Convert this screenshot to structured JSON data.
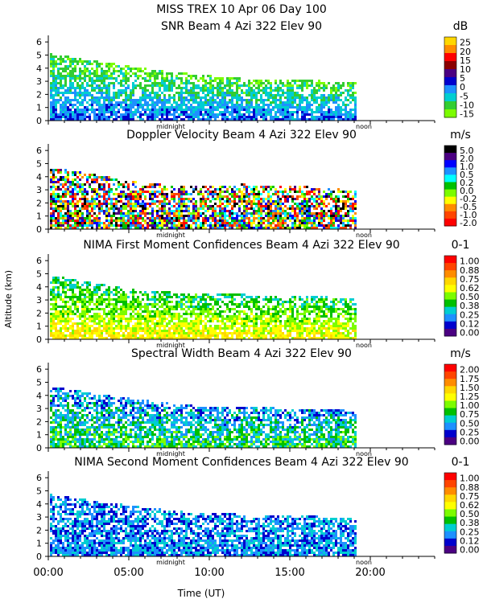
{
  "figure": {
    "title_line1": "MISS TREX   10 Apr 06 Day 100",
    "ylabel": "Altitude (km)",
    "xlabel": "Time (UT)",
    "x_ticks": [
      "00:00",
      "05:00",
      "10:00",
      "15:00",
      "20:00"
    ],
    "x_tick_values": [
      0,
      5,
      10,
      15,
      20
    ],
    "day_markers": [
      {
        "label": "midnight",
        "hour": 7.6
      },
      {
        "label": "noon",
        "hour": 19.6
      }
    ],
    "data_end_hour": 19.1,
    "x_range": [
      0,
      24
    ]
  },
  "chart_data": [
    {
      "type": "heatmap",
      "title": "SNR Beam 4 Azi 322 Elev 90",
      "unit": "dB",
      "xlim": [
        0,
        24
      ],
      "ylim": [
        0,
        6.5
      ],
      "y_ticks": [
        "0",
        "1",
        "2",
        "3",
        "4",
        "5",
        "6"
      ],
      "colorbar_labels": [
        "25",
        "20",
        "15",
        "10",
        "5",
        "0",
        "-5",
        "-10",
        "-15"
      ],
      "colorbar_colors": [
        "#ffd700",
        "#ff8c00",
        "#ff0000",
        "#8b0000",
        "#4b0082",
        "#0000cd",
        "#1e90ff",
        "#00ced1",
        "#32cd32",
        "#7cfc00"
      ],
      "top_km_profile": [
        [
          0,
          5.2
        ],
        [
          3,
          4.6
        ],
        [
          6,
          4.1
        ],
        [
          9,
          3.6
        ],
        [
          12,
          3.3
        ],
        [
          15,
          3.2
        ],
        [
          17.5,
          3.1
        ],
        [
          19.1,
          3.0
        ]
      ]
    },
    {
      "type": "heatmap",
      "title": "Doppler Velocity Beam 4 Azi 322 Elev 90",
      "unit": "m/s",
      "xlim": [
        0,
        24
      ],
      "ylim": [
        0,
        6.5
      ],
      "y_ticks": [
        "0",
        "1",
        "2",
        "3",
        "4",
        "5",
        "6"
      ],
      "colorbar_labels": [
        "5.0",
        "2.0",
        "1.0",
        "0.5",
        "0.2",
        "0.0",
        "-0.2",
        "-0.5",
        "-1.0",
        "-2.0"
      ],
      "colorbar_colors": [
        "#000000",
        "#4b0082",
        "#0000ff",
        "#1e90ff",
        "#00ffff",
        "#00c000",
        "#7cfc00",
        "#ffff00",
        "#ff8c00",
        "#ff4500",
        "#ff0000"
      ],
      "top_km_profile": [
        [
          0,
          4.8
        ],
        [
          3,
          4.2
        ],
        [
          6,
          3.6
        ],
        [
          9,
          3.4
        ],
        [
          12,
          3.5
        ],
        [
          15,
          3.4
        ],
        [
          17.5,
          3.2
        ],
        [
          19.1,
          3.0
        ]
      ]
    },
    {
      "type": "heatmap",
      "title": "NIMA First Moment Confidences Beam 4 Azi 322 Elev 90",
      "unit": "0-1",
      "xlim": [
        0,
        24
      ],
      "ylim": [
        0,
        6.5
      ],
      "y_ticks": [
        "0",
        "1",
        "2",
        "3",
        "4",
        "5",
        "6"
      ],
      "colorbar_labels": [
        "1.00",
        "0.88",
        "0.75",
        "0.62",
        "0.50",
        "0.38",
        "0.25",
        "0.12",
        "0.00"
      ],
      "colorbar_colors": [
        "#ff0000",
        "#ff4500",
        "#ff8c00",
        "#ffd700",
        "#ffff00",
        "#7cfc00",
        "#00c000",
        "#00ced1",
        "#1e90ff",
        "#0000cd",
        "#4b0082"
      ],
      "top_km_profile": [
        [
          0,
          5.0
        ],
        [
          3,
          4.3
        ],
        [
          6,
          3.8
        ],
        [
          9,
          3.6
        ],
        [
          12,
          3.5
        ],
        [
          15,
          3.4
        ],
        [
          17.5,
          3.3
        ],
        [
          19.1,
          3.1
        ]
      ]
    },
    {
      "type": "heatmap",
      "title": "Spectral Width Beam 4 Azi 322 Elev 90",
      "unit": "m/s",
      "xlim": [
        0,
        24
      ],
      "ylim": [
        0,
        6.5
      ],
      "y_ticks": [
        "0",
        "1",
        "2",
        "3",
        "4",
        "5",
        "6"
      ],
      "colorbar_labels": [
        "2.00",
        "1.75",
        "1.50",
        "1.25",
        "1.00",
        "0.75",
        "0.50",
        "0.25",
        "0.00"
      ],
      "colorbar_colors": [
        "#ff0000",
        "#ff4500",
        "#ff8c00",
        "#ffd700",
        "#ffff00",
        "#7cfc00",
        "#00c000",
        "#00ced1",
        "#1e90ff",
        "#0000cd",
        "#4b0082"
      ],
      "top_km_profile": [
        [
          0,
          4.8
        ],
        [
          3,
          4.2
        ],
        [
          6,
          3.7
        ],
        [
          9,
          3.3
        ],
        [
          12,
          3.2
        ],
        [
          15,
          3.1
        ],
        [
          17.5,
          3.0
        ],
        [
          19.1,
          2.9
        ]
      ]
    },
    {
      "type": "heatmap",
      "title": "NIMA Second Moment Confidences Beam 4 Azi 322 Elev 90",
      "unit": "0-1",
      "xlim": [
        0,
        24
      ],
      "ylim": [
        0,
        6.5
      ],
      "y_ticks": [
        "0",
        "1",
        "2",
        "3",
        "4",
        "5",
        "6"
      ],
      "colorbar_labels": [
        "1.00",
        "0.88",
        "0.75",
        "0.62",
        "0.50",
        "0.38",
        "0.25",
        "0.12",
        "0.00"
      ],
      "colorbar_colors": [
        "#ff0000",
        "#ff4500",
        "#ff8c00",
        "#ffd700",
        "#ffff00",
        "#7cfc00",
        "#00c000",
        "#00ced1",
        "#1e90ff",
        "#0000cd",
        "#4b0082"
      ],
      "top_km_profile": [
        [
          0,
          4.8
        ],
        [
          3,
          4.3
        ],
        [
          6,
          3.8
        ],
        [
          9,
          3.4
        ],
        [
          12,
          3.3
        ],
        [
          15,
          3.2
        ],
        [
          17.5,
          3.1
        ],
        [
          19.1,
          2.9
        ]
      ]
    }
  ]
}
